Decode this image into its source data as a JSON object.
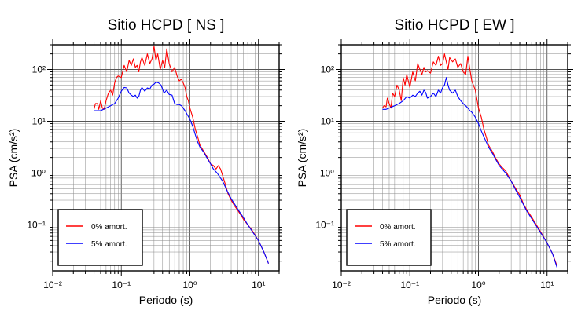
{
  "chart_data": [
    {
      "type": "line",
      "title": "Sitio HCPD [ NS ]",
      "xlabel": "Periodo (s)",
      "ylabel": "PSA (cm/s²)",
      "x_scale": "log",
      "y_scale": "log",
      "xlim": [
        0.01,
        20
      ],
      "ylim": [
        0.013,
        300
      ],
      "x_ticks": [
        "10⁻²",
        "10⁻¹",
        "10⁰",
        "10¹"
      ],
      "y_ticks": [
        "10⁻¹",
        "10⁰",
        "10¹",
        "10²"
      ],
      "grid": true,
      "legend_position": "bottom-left",
      "series": [
        {
          "name": "0% amort.",
          "color": "#ff0000",
          "points": [
            [
              0.04,
              17
            ],
            [
              0.042,
              22
            ],
            [
              0.045,
              22
            ],
            [
              0.047,
              17
            ],
            [
              0.05,
              25
            ],
            [
              0.053,
              18
            ],
            [
              0.056,
              17
            ],
            [
              0.06,
              25
            ],
            [
              0.065,
              35
            ],
            [
              0.07,
              40
            ],
            [
              0.075,
              32
            ],
            [
              0.08,
              55
            ],
            [
              0.085,
              70
            ],
            [
              0.09,
              75
            ],
            [
              0.1,
              70
            ],
            [
              0.11,
              120
            ],
            [
              0.12,
              90
            ],
            [
              0.13,
              150
            ],
            [
              0.14,
              120
            ],
            [
              0.15,
              160
            ],
            [
              0.16,
              110
            ],
            [
              0.17,
              120
            ],
            [
              0.18,
              90
            ],
            [
              0.19,
              140
            ],
            [
              0.2,
              170
            ],
            [
              0.22,
              120
            ],
            [
              0.24,
              200
            ],
            [
              0.26,
              130
            ],
            [
              0.28,
              160
            ],
            [
              0.3,
              280
            ],
            [
              0.32,
              150
            ],
            [
              0.34,
              200
            ],
            [
              0.37,
              100
            ],
            [
              0.4,
              150
            ],
            [
              0.43,
              110
            ],
            [
              0.46,
              250
            ],
            [
              0.5,
              130
            ],
            [
              0.55,
              90
            ],
            [
              0.6,
              110
            ],
            [
              0.65,
              75
            ],
            [
              0.7,
              60
            ],
            [
              0.75,
              65
            ],
            [
              0.8,
              55
            ],
            [
              0.85,
              45
            ],
            [
              0.9,
              30
            ],
            [
              0.95,
              25
            ],
            [
              1.0,
              18
            ],
            [
              1.1,
              12
            ],
            [
              1.2,
              7
            ],
            [
              1.3,
              5
            ],
            [
              1.4,
              3.5
            ],
            [
              1.6,
              2.6
            ],
            [
              1.8,
              2.0
            ],
            [
              2.0,
              1.5
            ],
            [
              2.2,
              1.4
            ],
            [
              2.4,
              1.2
            ],
            [
              2.6,
              1.4
            ],
            [
              2.8,
              1.2
            ],
            [
              3.0,
              0.9
            ],
            [
              3.3,
              0.6
            ],
            [
              3.6,
              0.4
            ],
            [
              4.0,
              0.3
            ],
            [
              4.5,
              0.23
            ],
            [
              5.0,
              0.19
            ],
            [
              6.0,
              0.13
            ],
            [
              7.0,
              0.1
            ],
            [
              8.0,
              0.08
            ],
            [
              10.0,
              0.05
            ],
            [
              12.0,
              0.03
            ],
            [
              14.0,
              0.018
            ]
          ]
        },
        {
          "name": "5% amort.",
          "color": "#0000ff",
          "points": [
            [
              0.04,
              16
            ],
            [
              0.045,
              16
            ],
            [
              0.05,
              16
            ],
            [
              0.055,
              17
            ],
            [
              0.06,
              18
            ],
            [
              0.07,
              20
            ],
            [
              0.08,
              22
            ],
            [
              0.09,
              28
            ],
            [
              0.1,
              38
            ],
            [
              0.11,
              45
            ],
            [
              0.12,
              44
            ],
            [
              0.13,
              35
            ],
            [
              0.14,
              32
            ],
            [
              0.15,
              30
            ],
            [
              0.16,
              32
            ],
            [
              0.17,
              28
            ],
            [
              0.18,
              30
            ],
            [
              0.19,
              40
            ],
            [
              0.2,
              45
            ],
            [
              0.22,
              38
            ],
            [
              0.24,
              44
            ],
            [
              0.26,
              42
            ],
            [
              0.28,
              50
            ],
            [
              0.3,
              52
            ],
            [
              0.32,
              57
            ],
            [
              0.35,
              55
            ],
            [
              0.38,
              50
            ],
            [
              0.42,
              35
            ],
            [
              0.46,
              40
            ],
            [
              0.5,
              33
            ],
            [
              0.55,
              32
            ],
            [
              0.6,
              22
            ],
            [
              0.65,
              21
            ],
            [
              0.7,
              21
            ],
            [
              0.75,
              20
            ],
            [
              0.8,
              18
            ],
            [
              0.85,
              16
            ],
            [
              0.9,
              14
            ],
            [
              1.0,
              11
            ],
            [
              1.1,
              8
            ],
            [
              1.2,
              5.5
            ],
            [
              1.3,
              4
            ],
            [
              1.4,
              3.2
            ],
            [
              1.6,
              2.5
            ],
            [
              1.8,
              1.9
            ],
            [
              2.0,
              1.5
            ],
            [
              2.2,
              1.2
            ],
            [
              2.5,
              1.0
            ],
            [
              3.0,
              0.7
            ],
            [
              3.5,
              0.45
            ],
            [
              4.0,
              0.32
            ],
            [
              4.5,
              0.25
            ],
            [
              5.0,
              0.2
            ],
            [
              6.0,
              0.14
            ],
            [
              7.0,
              0.1
            ],
            [
              8.0,
              0.077
            ],
            [
              10.0,
              0.05
            ],
            [
              12.0,
              0.03
            ],
            [
              14.0,
              0.018
            ]
          ]
        }
      ]
    },
    {
      "type": "line",
      "title": "Sitio HCPD [ EW ]",
      "xlabel": "Periodo (s)",
      "ylabel": "PSA (cm/s²)",
      "x_scale": "log",
      "y_scale": "log",
      "xlim": [
        0.01,
        20
      ],
      "ylim": [
        0.013,
        300
      ],
      "x_ticks": [
        "10⁻²",
        "10⁻¹",
        "10⁰",
        "10¹"
      ],
      "y_ticks": [
        "10⁻¹",
        "10⁰",
        "10¹",
        "10²"
      ],
      "grid": true,
      "legend_position": "bottom-left",
      "series": [
        {
          "name": "0% amort.",
          "color": "#ff0000",
          "points": [
            [
              0.04,
              18
            ],
            [
              0.042,
              20
            ],
            [
              0.045,
              19
            ],
            [
              0.047,
              28
            ],
            [
              0.05,
              22
            ],
            [
              0.053,
              18
            ],
            [
              0.056,
              35
            ],
            [
              0.06,
              30
            ],
            [
              0.065,
              50
            ],
            [
              0.07,
              40
            ],
            [
              0.075,
              25
            ],
            [
              0.08,
              70
            ],
            [
              0.085,
              50
            ],
            [
              0.09,
              80
            ],
            [
              0.1,
              45
            ],
            [
              0.11,
              90
            ],
            [
              0.12,
              60
            ],
            [
              0.13,
              130
            ],
            [
              0.14,
              100
            ],
            [
              0.15,
              80
            ],
            [
              0.16,
              110
            ],
            [
              0.17,
              90
            ],
            [
              0.18,
              95
            ],
            [
              0.2,
              85
            ],
            [
              0.22,
              140
            ],
            [
              0.24,
              120
            ],
            [
              0.26,
              180
            ],
            [
              0.28,
              120
            ],
            [
              0.3,
              130
            ],
            [
              0.32,
              200
            ],
            [
              0.34,
              140
            ],
            [
              0.36,
              100
            ],
            [
              0.38,
              170
            ],
            [
              0.42,
              140
            ],
            [
              0.46,
              160
            ],
            [
              0.5,
              110
            ],
            [
              0.55,
              130
            ],
            [
              0.6,
              90
            ],
            [
              0.65,
              80
            ],
            [
              0.7,
              180
            ],
            [
              0.75,
              100
            ],
            [
              0.8,
              60
            ],
            [
              0.9,
              40
            ],
            [
              1.0,
              18
            ],
            [
              1.1,
              12
            ],
            [
              1.2,
              7
            ],
            [
              1.3,
              5
            ],
            [
              1.4,
              3.5
            ],
            [
              1.6,
              2.6
            ],
            [
              1.8,
              1.9
            ],
            [
              2.0,
              1.5
            ],
            [
              2.2,
              1.3
            ],
            [
              2.5,
              1.1
            ],
            [
              3.0,
              0.7
            ],
            [
              3.5,
              0.5
            ],
            [
              4.0,
              0.38
            ],
            [
              4.5,
              0.26
            ],
            [
              5.0,
              0.2
            ],
            [
              6.0,
              0.14
            ],
            [
              7.0,
              0.1
            ],
            [
              8.0,
              0.075
            ],
            [
              10.0,
              0.045
            ],
            [
              12.0,
              0.028
            ],
            [
              14.0,
              0.016
            ]
          ]
        },
        {
          "name": "5% amort.",
          "color": "#0000ff",
          "points": [
            [
              0.04,
              17
            ],
            [
              0.045,
              17
            ],
            [
              0.05,
              18
            ],
            [
              0.055,
              19
            ],
            [
              0.06,
              20
            ],
            [
              0.07,
              22
            ],
            [
              0.08,
              25
            ],
            [
              0.09,
              30
            ],
            [
              0.1,
              28
            ],
            [
              0.11,
              32
            ],
            [
              0.12,
              30
            ],
            [
              0.13,
              35
            ],
            [
              0.14,
              38
            ],
            [
              0.15,
              32
            ],
            [
              0.16,
              40
            ],
            [
              0.17,
              36
            ],
            [
              0.18,
              28
            ],
            [
              0.2,
              30
            ],
            [
              0.22,
              35
            ],
            [
              0.24,
              30
            ],
            [
              0.26,
              40
            ],
            [
              0.28,
              35
            ],
            [
              0.3,
              45
            ],
            [
              0.32,
              50
            ],
            [
              0.34,
              70
            ],
            [
              0.36,
              50
            ],
            [
              0.38,
              40
            ],
            [
              0.42,
              35
            ],
            [
              0.46,
              40
            ],
            [
              0.5,
              30
            ],
            [
              0.55,
              25
            ],
            [
              0.6,
              22
            ],
            [
              0.65,
              20
            ],
            [
              0.7,
              18
            ],
            [
              0.75,
              16
            ],
            [
              0.8,
              15
            ],
            [
              0.9,
              12
            ],
            [
              1.0,
              9
            ],
            [
              1.1,
              6.5
            ],
            [
              1.2,
              5
            ],
            [
              1.3,
              4
            ],
            [
              1.4,
              3.2
            ],
            [
              1.6,
              2.4
            ],
            [
              1.8,
              1.8
            ],
            [
              2.0,
              1.4
            ],
            [
              2.5,
              1.0
            ],
            [
              3.0,
              0.7
            ],
            [
              3.5,
              0.47
            ],
            [
              4.0,
              0.34
            ],
            [
              4.5,
              0.25
            ],
            [
              5.0,
              0.19
            ],
            [
              6.0,
              0.13
            ],
            [
              7.0,
              0.095
            ],
            [
              8.0,
              0.072
            ],
            [
              10.0,
              0.045
            ],
            [
              12.0,
              0.028
            ],
            [
              14.0,
              0.015
            ]
          ]
        }
      ]
    }
  ]
}
